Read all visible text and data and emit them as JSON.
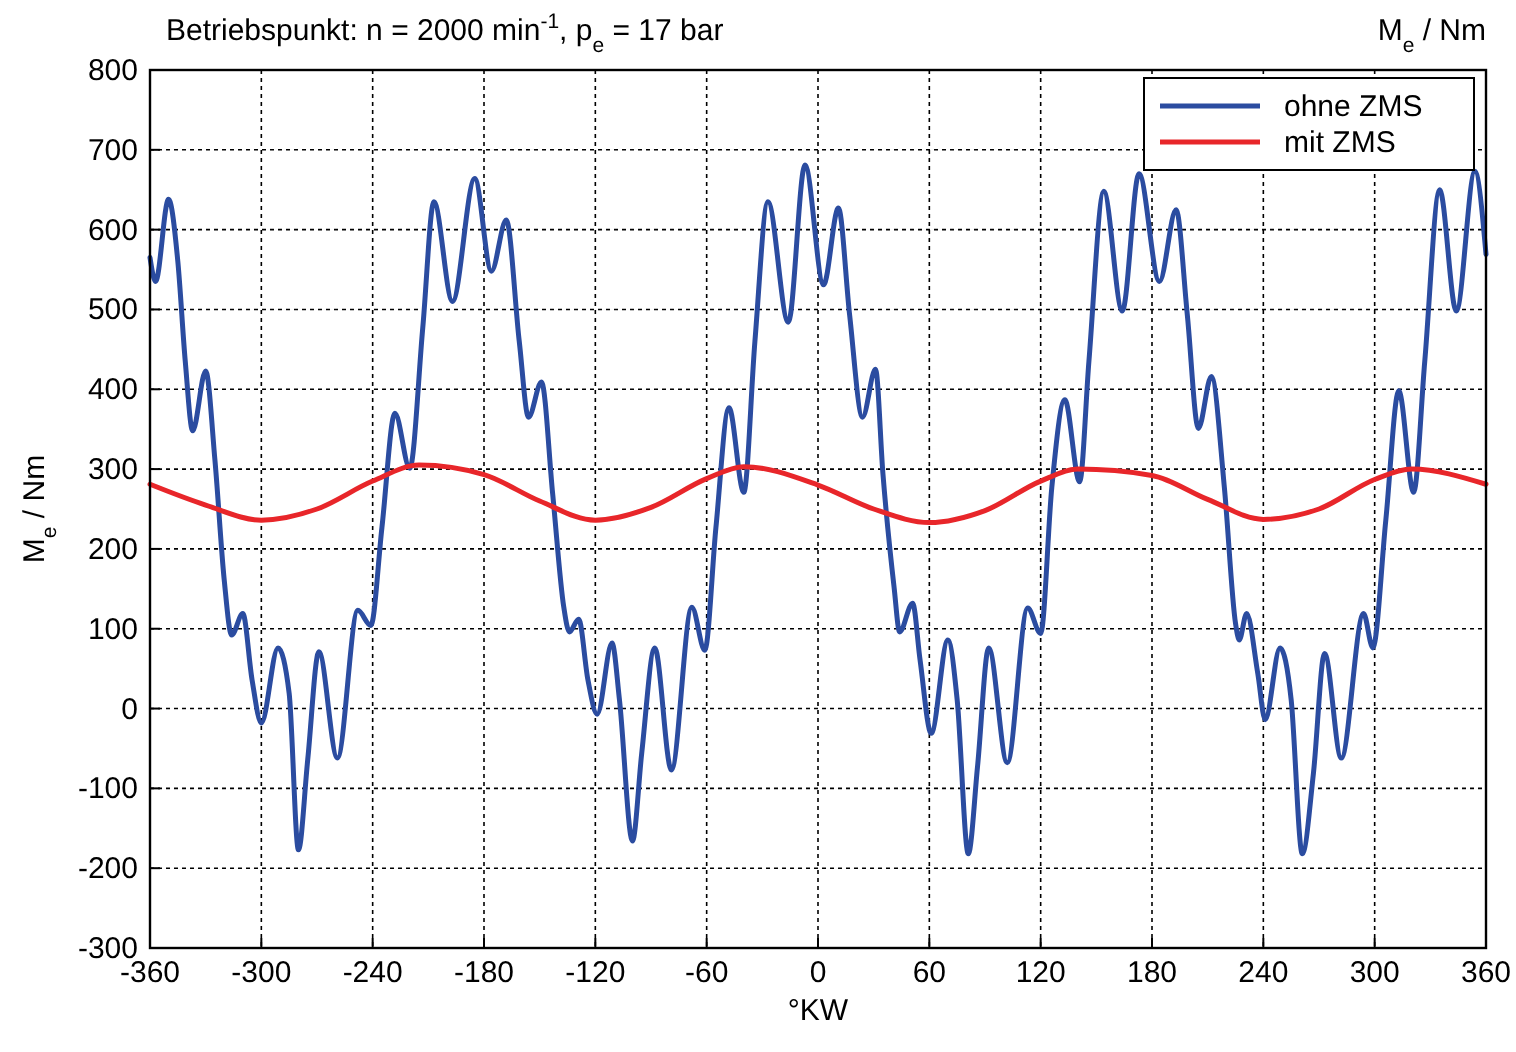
{
  "chart_data": {
    "type": "line",
    "title": "Betriebspunkt: n = 2000 min$^{-1}$, p$_{e}$ = 17 bar",
    "annotations": [
      "M$_{e}$ / Nm"
    ],
    "xlabel": "°KW",
    "ylabel": "M$_{e}$ / Nm",
    "xlim": [
      -360,
      360
    ],
    "xticks": [
      -360,
      -300,
      -240,
      -180,
      -120,
      -60,
      0,
      60,
      120,
      180,
      240,
      300,
      360
    ],
    "ylim": [
      -300,
      800
    ],
    "yticks": [
      -300,
      -200,
      -100,
      0,
      100,
      200,
      300,
      400,
      500,
      600,
      700,
      800
    ],
    "grid": true,
    "legend": "top right",
    "line_style": "solid",
    "marker": "none",
    "series": [
      {
        "name": "ohne ZMS",
        "color": "#2b4ca0",
        "x": [
          -360,
          -357,
          -350,
          -345,
          -341,
          -337,
          -330,
          -325,
          -320,
          -316,
          -310,
          -305,
          -300,
          -291,
          -285,
          -280,
          -275,
          -269,
          -259,
          -248,
          -241,
          -235,
          -228,
          -220,
          -213,
          -207,
          -197,
          -185,
          -176,
          -168,
          -161,
          -156,
          -149,
          -143,
          -137,
          -134,
          -129,
          -124,
          -119,
          -111,
          -107,
          -100,
          -95,
          -88,
          -79,
          -68,
          -61,
          -55,
          -48,
          -40,
          -34,
          -27,
          -16,
          -7,
          3,
          11,
          17,
          24,
          31,
          35,
          41,
          44,
          51,
          55,
          61,
          70,
          75,
          81,
          86,
          92,
          102,
          113,
          120,
          126,
          133,
          141,
          146,
          154,
          164,
          173,
          184,
          193,
          199,
          205,
          212,
          219,
          225,
          227,
          231,
          237,
          241,
          249,
          255,
          261,
          267,
          273,
          282,
          294,
          299,
          306,
          313,
          321,
          327,
          335,
          344,
          354,
          360
        ],
        "values": [
          565,
          535,
          638,
          560,
          435,
          348,
          423,
          311,
          161,
          92,
          119,
          36,
          -18,
          76,
          19,
          -177,
          -64,
          71,
          -62,
          123,
          104,
          227,
          370,
          301,
          477,
          635,
          510,
          664,
          548,
          612,
          460,
          365,
          409,
          269,
          127,
          96,
          112,
          36,
          -7,
          82,
          11,
          -166,
          -56,
          76,
          -77,
          127,
          73,
          227,
          377,
          271,
          460,
          635,
          484,
          681,
          531,
          627,
          494,
          365,
          425,
          294,
          152,
          96,
          132,
          61,
          -31,
          86,
          11,
          -182,
          -72,
          76,
          -68,
          126,
          94,
          277,
          387,
          284,
          435,
          648,
          498,
          670,
          535,
          625,
          494,
          351,
          416,
          277,
          107,
          86,
          119,
          44,
          -14,
          76,
          11,
          -182,
          -81,
          69,
          -62,
          119,
          76,
          236,
          398,
          271,
          435,
          650,
          498,
          673,
          569
        ]
      },
      {
        "name": "mit ZMS",
        "color": "#e8262a",
        "x": [
          -360,
          -330,
          -300,
          -270,
          -240,
          -215,
          -180,
          -150,
          -120,
          -90,
          -60,
          -40,
          0,
          30,
          60,
          90,
          120,
          140,
          180,
          210,
          240,
          270,
          300,
          320,
          360
        ],
        "values": [
          281,
          255,
          236,
          250,
          285,
          305,
          293,
          260,
          236,
          252,
          288,
          303,
          280,
          250,
          233,
          248,
          285,
          300,
          292,
          262,
          237,
          250,
          287,
          300,
          281
        ]
      }
    ]
  }
}
